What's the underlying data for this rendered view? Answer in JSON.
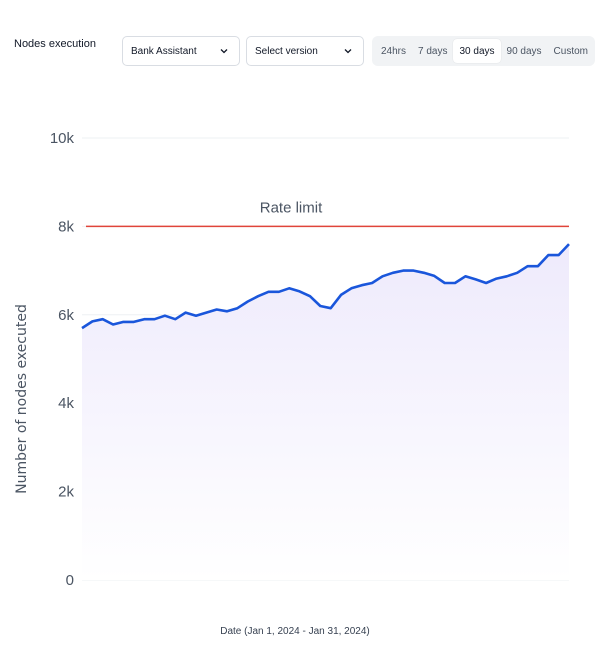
{
  "header": {
    "title": "Nodes execution",
    "agent_dropdown": {
      "value": "Bank Assistant",
      "icon": "chevron-down-icon"
    },
    "version_dropdown": {
      "value": "Select version",
      "icon": "chevron-down-icon"
    },
    "ranges": [
      {
        "label": "24hrs",
        "active": false
      },
      {
        "label": "7 days",
        "active": false
      },
      {
        "label": "30 days",
        "active": true
      },
      {
        "label": "90 days",
        "active": false
      },
      {
        "label": "Custom",
        "active": false
      }
    ]
  },
  "chart_data": {
    "type": "area",
    "title": "",
    "xlabel": "Date (Jan 1, 2024 - Jan 31, 2024)",
    "ylabel": "Number of nodes executed",
    "ylim": [
      0,
      10000
    ],
    "yticks": [
      {
        "value": 0,
        "label": "0"
      },
      {
        "value": 2000,
        "label": "2k"
      },
      {
        "value": 4000,
        "label": "4k"
      },
      {
        "value": 6000,
        "label": "6k"
      },
      {
        "value": 8000,
        "label": "8k"
      },
      {
        "value": 10000,
        "label": "10k"
      }
    ],
    "reference_line": {
      "value": 8000,
      "label": "Rate limit",
      "color": "#e0443a"
    },
    "grid": true,
    "series": [
      {
        "color": "#1a56db",
        "fill": "#f1effc",
        "values": [
          5700,
          5850,
          5900,
          5780,
          5840,
          5840,
          5900,
          5900,
          5980,
          5900,
          6050,
          5980,
          6050,
          6120,
          6080,
          6150,
          6300,
          6420,
          6520,
          6520,
          6600,
          6530,
          6420,
          6200,
          6150,
          6450,
          6600,
          6670,
          6720,
          6870,
          6950,
          7000,
          7000,
          6950,
          6880,
          6720,
          6720,
          6870,
          6800,
          6720,
          6820,
          6870,
          6950,
          7100,
          7100,
          7350,
          7350,
          7600
        ]
      }
    ]
  }
}
